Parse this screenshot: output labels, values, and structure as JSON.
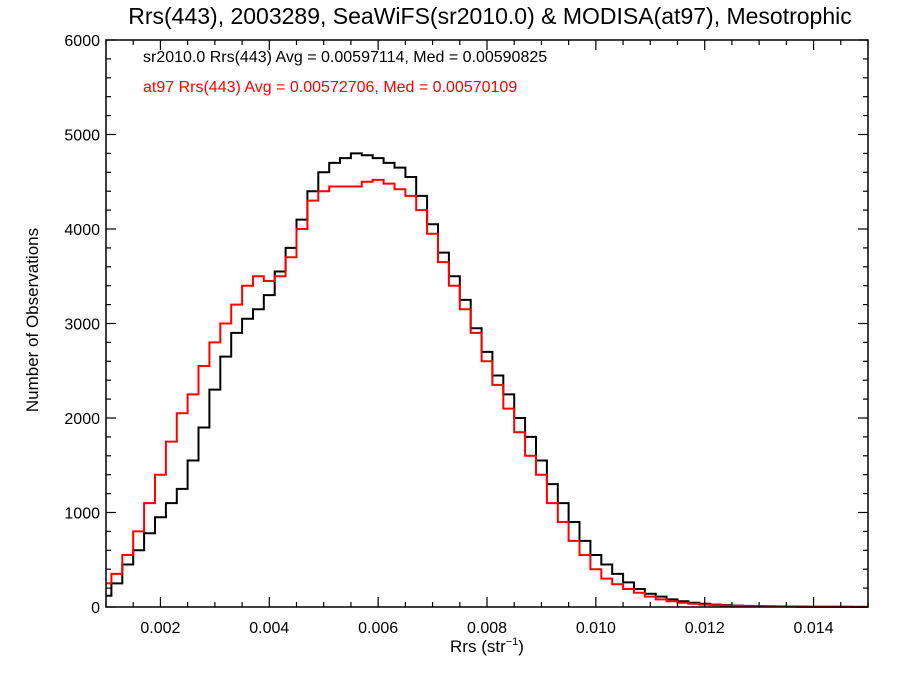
{
  "chart_data": {
    "type": "line",
    "title": "Rrs(443), 2003289, SeaWiFS(sr2010.0) & MODISA(at97), Mesotrophic",
    "xlabel": {
      "base": "Rrs (str",
      "sup": "−1",
      "close": ")"
    },
    "ylabel": "Number of Observations",
    "xlim": [
      0.001,
      0.015
    ],
    "ylim": [
      0,
      6000
    ],
    "xticks": [
      0.002,
      0.004,
      0.006,
      0.008,
      0.01,
      0.012,
      0.014
    ],
    "xtick_labels": [
      "0.002",
      "0.004",
      "0.006",
      "0.008",
      "0.010",
      "0.012",
      "0.014"
    ],
    "yticks": [
      0,
      1000,
      2000,
      3000,
      4000,
      5000,
      6000
    ],
    "ytick_labels": [
      "0",
      "1000",
      "2000",
      "3000",
      "4000",
      "5000",
      "6000"
    ],
    "grid": false,
    "annotations": [
      {
        "text": "sr2010.0 Rrs(443) Avg = 0.00597114, Med = 0.00590825",
        "color": "#000000"
      },
      {
        "text": "at97 Rrs(443) Avg = 0.00572706, Med = 0.00570109",
        "color": "#ff0000"
      }
    ],
    "series": [
      {
        "color": "#000000",
        "x": [
          0.001,
          0.0012,
          0.0014,
          0.0016,
          0.0018,
          0.002,
          0.0022,
          0.0024,
          0.0026,
          0.0028,
          0.003,
          0.0032,
          0.0034,
          0.0036,
          0.0038,
          0.004,
          0.0042,
          0.0044,
          0.0046,
          0.0048,
          0.005,
          0.0052,
          0.0054,
          0.0056,
          0.0058,
          0.006,
          0.0062,
          0.0064,
          0.0066,
          0.0068,
          0.007,
          0.0072,
          0.0074,
          0.0076,
          0.0078,
          0.008,
          0.0082,
          0.0084,
          0.0086,
          0.0088,
          0.009,
          0.0092,
          0.0094,
          0.0096,
          0.0098,
          0.01,
          0.0102,
          0.0104,
          0.0106,
          0.0108,
          0.011,
          0.0112,
          0.0114,
          0.0116,
          0.0118,
          0.012,
          0.0122,
          0.0124,
          0.0126,
          0.0128,
          0.013,
          0.0132,
          0.0134,
          0.0136,
          0.0138,
          0.014,
          0.0142,
          0.0144,
          0.0146,
          0.0148,
          0.015
        ],
        "y": [
          120,
          250,
          450,
          600,
          780,
          950,
          1100,
          1250,
          1550,
          1900,
          2300,
          2650,
          2900,
          3050,
          3150,
          3300,
          3550,
          3800,
          4100,
          4400,
          4600,
          4700,
          4750,
          4800,
          4780,
          4750,
          4700,
          4650,
          4550,
          4350,
          4050,
          3750,
          3500,
          3250,
          2950,
          2700,
          2450,
          2250,
          2000,
          1800,
          1550,
          1300,
          1100,
          900,
          700,
          550,
          450,
          350,
          260,
          190,
          140,
          110,
          80,
          60,
          45,
          35,
          25,
          20,
          15,
          12,
          10,
          8,
          6,
          5,
          4,
          3,
          3,
          2,
          2,
          1,
          1
        ]
      },
      {
        "color": "#ff0000",
        "x": [
          0.001,
          0.0012,
          0.0014,
          0.0016,
          0.0018,
          0.002,
          0.0022,
          0.0024,
          0.0026,
          0.0028,
          0.003,
          0.0032,
          0.0034,
          0.0036,
          0.0038,
          0.004,
          0.0042,
          0.0044,
          0.0046,
          0.0048,
          0.005,
          0.0052,
          0.0054,
          0.0056,
          0.0058,
          0.006,
          0.0062,
          0.0064,
          0.0066,
          0.0068,
          0.007,
          0.0072,
          0.0074,
          0.0076,
          0.0078,
          0.008,
          0.0082,
          0.0084,
          0.0086,
          0.0088,
          0.009,
          0.0092,
          0.0094,
          0.0096,
          0.0098,
          0.01,
          0.0102,
          0.0104,
          0.0106,
          0.0108,
          0.011,
          0.0112,
          0.0114,
          0.0116,
          0.0118,
          0.012,
          0.0122,
          0.0124,
          0.0126,
          0.0128,
          0.013,
          0.0132,
          0.0134,
          0.0136,
          0.0138,
          0.014,
          0.0142,
          0.0144,
          0.0146,
          0.0148,
          0.015
        ],
        "y": [
          250,
          350,
          550,
          800,
          1100,
          1400,
          1750,
          2050,
          2250,
          2550,
          2800,
          3000,
          3200,
          3400,
          3500,
          3450,
          3500,
          3700,
          4000,
          4300,
          4400,
          4450,
          4450,
          4450,
          4500,
          4520,
          4480,
          4420,
          4350,
          4200,
          3950,
          3650,
          3400,
          3150,
          2900,
          2600,
          2350,
          2100,
          1850,
          1600,
          1400,
          1100,
          900,
          700,
          550,
          400,
          300,
          240,
          190,
          150,
          110,
          80,
          60,
          45,
          35,
          25,
          20,
          15,
          12,
          10,
          8,
          6,
          5,
          4,
          3,
          3,
          2,
          2,
          1,
          1,
          1
        ]
      }
    ]
  }
}
